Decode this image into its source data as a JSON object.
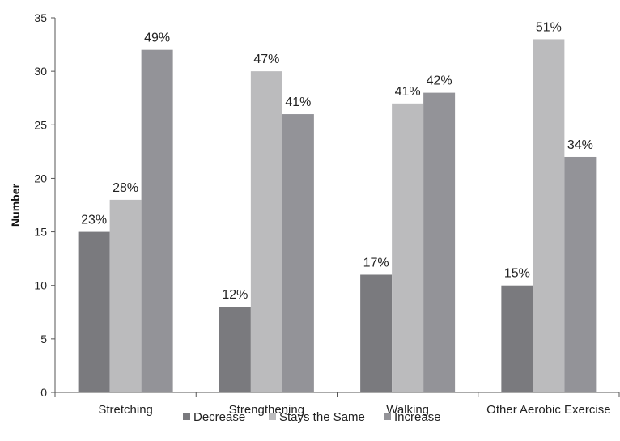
{
  "chart_data": {
    "type": "bar",
    "title": "",
    "xlabel": "",
    "ylabel": "Number",
    "ylim": [
      0,
      35
    ],
    "yticks": [
      0,
      5,
      10,
      15,
      20,
      25,
      30,
      35
    ],
    "grid": false,
    "legend_position": "bottom",
    "categories": [
      "Stretching",
      "Strengthening",
      "Walking",
      "Other Aerobic Exercise"
    ],
    "series": [
      {
        "name": "Decrease",
        "color": "#7a7a7e",
        "values": [
          15,
          8,
          11,
          10
        ],
        "labels": [
          "23%",
          "12%",
          "17%",
          "15%"
        ]
      },
      {
        "name": "Stays the Same",
        "color": "#bbbbbd",
        "values": [
          18,
          30,
          27,
          33
        ],
        "labels": [
          "28%",
          "47%",
          "41%",
          "51%"
        ]
      },
      {
        "name": "Increase",
        "color": "#939398",
        "values": [
          32,
          26,
          28,
          22
        ],
        "labels": [
          "49%",
          "41%",
          "42%",
          "34%"
        ]
      }
    ]
  }
}
